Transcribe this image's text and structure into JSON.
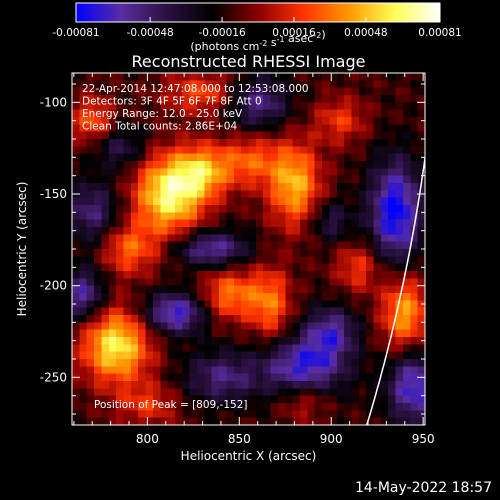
{
  "chart_data": {
    "type": "heatmap",
    "title": "Reconstructed RHESSI Image",
    "xlabel": "Heliocentric X (arcsec)",
    "ylabel": "Heliocentric Y (arcsec)",
    "xlim": [
      759,
      951
    ],
    "ylim": [
      -276,
      -84
    ],
    "xticks": [
      800,
      850,
      900,
      950
    ],
    "yticks": [
      -100,
      -150,
      -200,
      -250
    ],
    "colorbar": {
      "min": -0.00081,
      "max": 0.00081,
      "ticks": [
        "-0.00081",
        "-0.00048",
        "-0.00016",
        "0.00016",
        "0.00048",
        "0.00081"
      ],
      "unit_label": "(photons cm-2 s-1 asec-2)",
      "colors": [
        "#0000ff",
        "#5a2da0",
        "#2a1040",
        "#000000",
        "#8a0000",
        "#ff3300",
        "#ff9900",
        "#ffff55",
        "#ffffff"
      ]
    },
    "info_lines": [
      "22-Apr-2014 12:47:08.000 to 12:53:08.000",
      "Detectors: 3F 4F 5F 6F 7F 8F    Att 0",
      "Energy Range: 12.0 - 25.0 keV",
      "Clean     Total counts: 2.86E+04"
    ],
    "peak_label": "Position of Peak = [809,-152]",
    "peak": [
      809,
      -152
    ],
    "sources": [
      {
        "x": 812,
        "y": -150,
        "amp": 0.00078,
        "sx": 13,
        "sy": 15
      },
      {
        "x": 830,
        "y": -138,
        "amp": 0.0005,
        "sx": 10,
        "sy": 10
      },
      {
        "x": 783,
        "y": -233,
        "amp": 0.00072,
        "sx": 13,
        "sy": 14
      },
      {
        "x": 880,
        "y": -145,
        "amp": 0.00058,
        "sx": 10,
        "sy": 16
      },
      {
        "x": 855,
        "y": -132,
        "amp": 0.00038,
        "sx": 12,
        "sy": 10
      },
      {
        "x": 845,
        "y": -205,
        "amp": 0.00045,
        "sx": 11,
        "sy": 10
      },
      {
        "x": 867,
        "y": -210,
        "amp": 0.00042,
        "sx": 8,
        "sy": 14
      },
      {
        "x": 940,
        "y": -215,
        "amp": 0.00055,
        "sx": 9,
        "sy": 15
      },
      {
        "x": 915,
        "y": -190,
        "amp": 0.00032,
        "sx": 9,
        "sy": 10
      },
      {
        "x": 790,
        "y": -180,
        "amp": 0.0004,
        "sx": 11,
        "sy": 10
      },
      {
        "x": 770,
        "y": -110,
        "amp": 0.00038,
        "sx": 8,
        "sy": 9
      },
      {
        "x": 830,
        "y": -95,
        "amp": 0.00035,
        "sx": 15,
        "sy": 8
      },
      {
        "x": 905,
        "y": -110,
        "amp": 0.0003,
        "sx": 10,
        "sy": 9
      },
      {
        "x": 885,
        "y": -262,
        "amp": 0.0003,
        "sx": 10,
        "sy": 8
      },
      {
        "x": 800,
        "y": -265,
        "amp": 0.00028,
        "sx": 12,
        "sy": 8
      },
      {
        "x": 815,
        "y": -215,
        "amp": -0.0006,
        "sx": 12,
        "sy": 8
      },
      {
        "x": 835,
        "y": -180,
        "amp": -0.0005,
        "sx": 14,
        "sy": 7
      },
      {
        "x": 885,
        "y": -245,
        "amp": -0.0006,
        "sx": 16,
        "sy": 12
      },
      {
        "x": 860,
        "y": -100,
        "amp": -0.00045,
        "sx": 12,
        "sy": 10
      },
      {
        "x": 935,
        "y": -160,
        "amp": -0.0007,
        "sx": 10,
        "sy": 20
      },
      {
        "x": 945,
        "y": -255,
        "amp": -0.0006,
        "sx": 10,
        "sy": 14
      },
      {
        "x": 770,
        "y": -160,
        "amp": -0.0004,
        "sx": 10,
        "sy": 12
      },
      {
        "x": 765,
        "y": -205,
        "amp": -0.0005,
        "sx": 8,
        "sy": 10
      },
      {
        "x": 840,
        "y": -250,
        "amp": -0.0004,
        "sx": 14,
        "sy": 10
      },
      {
        "x": 785,
        "y": -125,
        "amp": -0.0003,
        "sx": 10,
        "sy": 8
      },
      {
        "x": 900,
        "y": -225,
        "amp": -0.00045,
        "sx": 10,
        "sy": 10
      },
      {
        "x": 900,
        "y": -165,
        "amp": -0.0003,
        "sx": 8,
        "sy": 8
      }
    ],
    "grid": false
  },
  "timestamp": "14-May-2022 18:57"
}
